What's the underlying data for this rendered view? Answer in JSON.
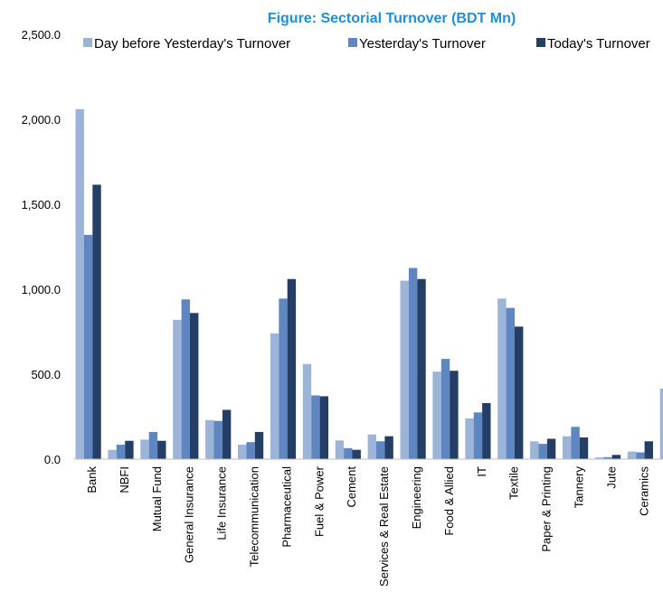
{
  "chart_data": {
    "type": "bar",
    "title": "Figure: Sectorial Turnover (BDT Mn)",
    "xlabel": "",
    "ylabel": "",
    "ylim": [
      0,
      2500
    ],
    "y_ticks": [
      "0.0",
      "500.0",
      "1,000.0",
      "1,500.0",
      "2,000.0",
      "2,500.0"
    ],
    "y_tick_values": [
      0,
      500,
      1000,
      1500,
      2000,
      2500
    ],
    "grid": false,
    "legend_position": "top",
    "categories": [
      "Bank",
      "NBFI",
      "Mutual Fund",
      "General Insurance",
      "Life Insurance",
      "Telecommunication",
      "Pharmaceutical",
      "Fuel & Power",
      "Cement",
      "Services & Real Estate",
      "Engineering",
      "Food & Allied",
      "IT",
      "Textile",
      "Paper & Printing",
      "Tannery",
      "Jute",
      "Ceramics",
      ""
    ],
    "series": [
      {
        "name": "Day before Yesterday's Turnover",
        "color": "#9db4d9",
        "values": [
          2060,
          55,
          115,
          820,
          230,
          85,
          740,
          560,
          110,
          145,
          1050,
          515,
          240,
          945,
          105,
          135,
          10,
          45,
          415
        ]
      },
      {
        "name": "Yesterday's Turnover",
        "color": "#5f86c1",
        "values": [
          1320,
          85,
          160,
          940,
          225,
          100,
          945,
          375,
          65,
          105,
          1125,
          590,
          275,
          890,
          90,
          190,
          12,
          40,
          0
        ]
      },
      {
        "name": "Today's Turnover",
        "color": "#243e66",
        "values": [
          1615,
          108,
          108,
          860,
          290,
          160,
          1060,
          370,
          55,
          135,
          1060,
          520,
          330,
          780,
          120,
          128,
          25,
          105,
          0
        ]
      }
    ]
  }
}
